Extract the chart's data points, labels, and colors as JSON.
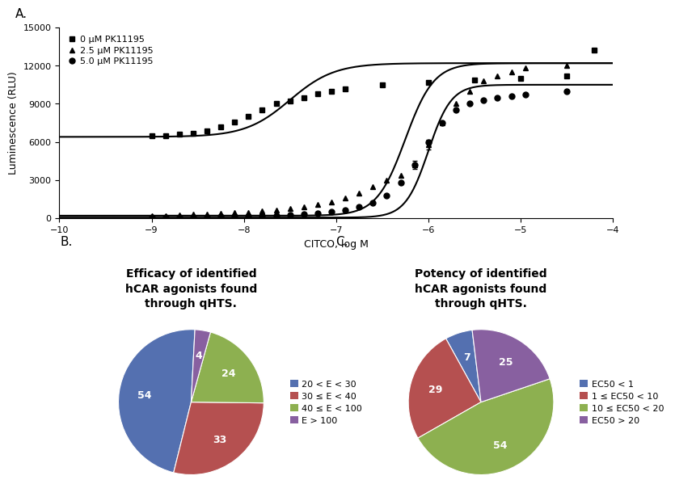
{
  "panel_a_label": "A.",
  "panel_b_label": "B.",
  "panel_c_label": "C.",
  "xlabel": "CITCO, log M",
  "ylabel": "Luminescence (RLU)",
  "xlim": [
    -10,
    -4
  ],
  "ylim": [
    0,
    15000
  ],
  "yticks": [
    0,
    3000,
    6000,
    9000,
    12000,
    15000
  ],
  "xticks": [
    -10,
    -9,
    -8,
    -7,
    -6,
    -5,
    -4
  ],
  "series": [
    {
      "label": "0 μM PK11195",
      "marker": "s",
      "color": "black",
      "bottom": 6400,
      "top": 12200,
      "ec50": -7.5,
      "hill": 1.8,
      "x_data": [
        -9.0,
        -8.85,
        -8.7,
        -8.55,
        -8.4,
        -8.25,
        -8.1,
        -7.95,
        -7.8,
        -7.65,
        -7.5,
        -7.35,
        -7.2,
        -7.05,
        -6.9,
        -6.5,
        -6.0,
        -5.5,
        -5.0,
        -4.5,
        -4.2
      ],
      "y_data": [
        6500,
        6500,
        6600,
        6700,
        6900,
        7200,
        7600,
        8000,
        8500,
        9000,
        9200,
        9500,
        9800,
        10000,
        10200,
        10500,
        10700,
        10900,
        11000,
        11200,
        13200
      ],
      "yerr_data": [
        null,
        null,
        null,
        null,
        null,
        null,
        null,
        null,
        null,
        null,
        null,
        null,
        null,
        null,
        null,
        null,
        null,
        null,
        null,
        null,
        null
      ]
    },
    {
      "label": "2.5 μM PK11195",
      "marker": "^",
      "color": "black",
      "bottom": 200,
      "top": 12200,
      "ec50": -6.25,
      "hill": 2.8,
      "x_data": [
        -9.0,
        -8.85,
        -8.7,
        -8.55,
        -8.4,
        -8.25,
        -8.1,
        -7.95,
        -7.8,
        -7.65,
        -7.5,
        -7.35,
        -7.2,
        -7.05,
        -6.9,
        -6.75,
        -6.6,
        -6.45,
        -6.3,
        -6.15,
        -6.0,
        -5.85,
        -5.7,
        -5.55,
        -5.4,
        -5.25,
        -5.1,
        -4.95,
        -4.5
      ],
      "y_data": [
        200,
        220,
        250,
        300,
        350,
        380,
        420,
        480,
        550,
        650,
        750,
        900,
        1100,
        1300,
        1600,
        2000,
        2500,
        3000,
        3400,
        4200,
        5800,
        7500,
        9000,
        10000,
        10800,
        11200,
        11500,
        11800,
        12000
      ],
      "yerr_data": [
        null,
        null,
        null,
        null,
        null,
        null,
        null,
        null,
        null,
        null,
        null,
        null,
        null,
        null,
        null,
        null,
        null,
        null,
        null,
        300,
        400,
        null,
        null,
        null,
        null,
        null,
        null,
        null,
        null
      ]
    },
    {
      "label": "5.0 μM PK11195",
      "marker": "o",
      "color": "black",
      "bottom": 50,
      "top": 10500,
      "ec50": -6.0,
      "hill": 3.5,
      "x_data": [
        -9.0,
        -8.85,
        -8.7,
        -8.55,
        -8.4,
        -8.25,
        -8.1,
        -7.95,
        -7.8,
        -7.65,
        -7.5,
        -7.35,
        -7.2,
        -7.05,
        -6.9,
        -6.75,
        -6.6,
        -6.45,
        -6.3,
        -6.15,
        -6.0,
        -5.85,
        -5.7,
        -5.55,
        -5.4,
        -5.25,
        -5.1,
        -4.95,
        -4.5
      ],
      "y_data": [
        50,
        60,
        70,
        80,
        90,
        110,
        130,
        150,
        180,
        220,
        270,
        330,
        400,
        500,
        650,
        900,
        1200,
        1800,
        2800,
        4200,
        6000,
        7500,
        8500,
        9000,
        9300,
        9500,
        9600,
        9700,
        10000
      ],
      "yerr_data": [
        null,
        null,
        null,
        null,
        null,
        null,
        null,
        null,
        null,
        null,
        null,
        null,
        null,
        null,
        null,
        null,
        null,
        null,
        null,
        null,
        null,
        null,
        null,
        null,
        null,
        null,
        null,
        null,
        null
      ]
    }
  ],
  "pie_b": {
    "title": "Efficacy of identified\nhCAR agonists found\nthrough qHTS.",
    "values": [
      54,
      33,
      24,
      4
    ],
    "pct_labels": [
      "54",
      "33",
      "24",
      "4"
    ],
    "colors": [
      "#5470b0",
      "#b55050",
      "#8db050",
      "#8860a0"
    ],
    "legend_labels": [
      "20 < E < 30",
      "30 ≤ E < 40",
      "40 ≤ E < 100",
      "E > 100"
    ],
    "startangle": 87,
    "pct_distance": 0.65
  },
  "pie_c": {
    "title": "Potency of identified\nhCAR agonists found\nthrough qHTS.",
    "values": [
      7,
      29,
      54,
      25
    ],
    "pct_labels": [
      "7",
      "29",
      "54",
      "25"
    ],
    "colors": [
      "#5470b0",
      "#b55050",
      "#8db050",
      "#8860a0"
    ],
    "legend_labels": [
      "EC50 < 1",
      "1 ≤ EC50 < 10",
      "10 ≤ EC50 < 20",
      "EC50 > 20"
    ],
    "startangle": 97,
    "pct_distance": 0.65
  },
  "fig_background": "white",
  "marker_size": 5,
  "line_width": 1.5,
  "font_size": 9,
  "legend_font_size": 8,
  "tick_font_size": 8,
  "label_font_size": 9,
  "panel_label_font_size": 11,
  "title_font_size": 10
}
